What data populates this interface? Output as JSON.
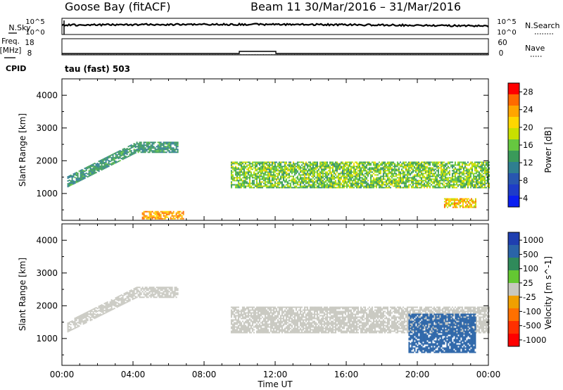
{
  "header": {
    "station": "Goose Bay (fitACF)",
    "beam_date": "Beam 11  30/Mar/2016 – 31/Mar/2016"
  },
  "side_labels": {
    "nsky": "N.Sky",
    "freq_line1": "Freq.",
    "freq_line2": "[MHz]",
    "cpid": "CPID",
    "nsearch": "N.Search",
    "nave": "Nave",
    "nsky_ticks": [
      "10^5",
      "10^0"
    ],
    "nsearch_ticks": [
      "10^5",
      "10^0"
    ],
    "freq_ticks": [
      "18",
      "8"
    ],
    "nave_ticks": [
      "60",
      "0"
    ],
    "cpid_text": "tau (fast) 503"
  },
  "power_colorbar": {
    "label": "Power [dB]",
    "ticks": [
      "28",
      "24",
      "20",
      "16",
      "12",
      "8",
      "4"
    ],
    "colors": [
      "#ff0000",
      "#ff6a00",
      "#ffa500",
      "#ffd700",
      "#c8e000",
      "#66c840",
      "#3a9a5a",
      "#2f7f90",
      "#2856b0",
      "#1e3cc8",
      "#0a1ef0"
    ]
  },
  "velocity_colorbar": {
    "label": "Velocity [m s^-1]",
    "ticks": [
      "1000",
      "500",
      "100",
      "25",
      "-25",
      "-100",
      "-500",
      "-1000"
    ],
    "colors": [
      "#1f3fb0",
      "#2a64a8",
      "#2f8a5a",
      "#64c832",
      "#c8c8c0",
      "#f0a000",
      "#ff7000",
      "#ff3000",
      "#ff0000"
    ]
  },
  "chart_data": [
    {
      "type": "heatmap",
      "panel": "power",
      "title": "tau (fast) 503",
      "ylabel": "Slant Range [km]",
      "xlabel": "",
      "xlim": [
        "00:00",
        "24:00"
      ],
      "ylim": [
        180,
        4500
      ],
      "yticks": [
        1000,
        2000,
        3000,
        4000
      ],
      "colorbar": "Power [dB]",
      "regions": [
        {
          "name": "morning arc",
          "t_start_h": 0.3,
          "t_end_h": 6.5,
          "range_km": [
            1300,
            2700
          ],
          "power_db": [
            8,
            14
          ]
        },
        {
          "name": "ground scatter near",
          "t_start_h": 4.5,
          "t_end_h": 6.8,
          "range_km": [
            250,
            500
          ],
          "power_db": [
            20,
            28
          ]
        },
        {
          "name": "afternoon band",
          "t_start_h": 9.5,
          "t_end_h": 24,
          "range_km": [
            1200,
            2000
          ],
          "power_db": [
            10,
            20
          ]
        },
        {
          "name": "late evening patch",
          "t_start_h": 21.5,
          "t_end_h": 23.3,
          "range_km": [
            600,
            900
          ],
          "power_db": [
            16,
            28
          ]
        }
      ]
    },
    {
      "type": "heatmap",
      "panel": "velocity",
      "ylabel": "Slant Range [km]",
      "xlabel": "Time UT",
      "xlim": [
        "00:00",
        "24:00"
      ],
      "ylim": [
        180,
        4500
      ],
      "yticks": [
        1000,
        2000,
        3000,
        4000
      ],
      "xticks": [
        "00:00",
        "04:00",
        "08:00",
        "12:00",
        "16:00",
        "20:00",
        "00:00"
      ],
      "colorbar": "Velocity [m s^-1]",
      "regions": [
        {
          "name": "morning arc",
          "t_start_h": 0.3,
          "t_end_h": 6.5,
          "range_km": [
            1300,
            2700
          ],
          "velocity_ms": [
            -25,
            25
          ]
        },
        {
          "name": "afternoon band",
          "t_start_h": 9.5,
          "t_end_h": 24,
          "range_km": [
            1200,
            2000
          ],
          "velocity_ms": [
            -25,
            25
          ]
        },
        {
          "name": "evening positive velocities",
          "t_start_h": 19.5,
          "t_end_h": 23.3,
          "range_km": [
            600,
            1800
          ],
          "velocity_ms": [
            100,
            500
          ]
        }
      ]
    }
  ]
}
